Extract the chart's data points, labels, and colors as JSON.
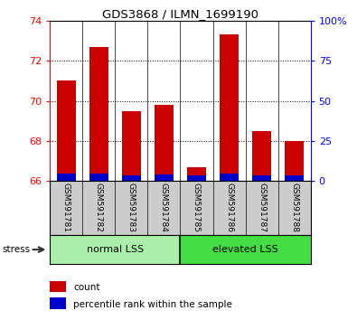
{
  "title": "GDS3868 / ILMN_1699190",
  "samples": [
    "GSM591781",
    "GSM591782",
    "GSM591783",
    "GSM591784",
    "GSM591785",
    "GSM591786",
    "GSM591787",
    "GSM591788"
  ],
  "red_values": [
    71.0,
    72.7,
    69.5,
    69.8,
    66.7,
    73.3,
    68.5,
    68.0
  ],
  "blue_values": [
    0.35,
    0.35,
    0.25,
    0.3,
    0.25,
    0.35,
    0.25,
    0.28
  ],
  "baseline": 66.0,
  "ylim_left": [
    66,
    74
  ],
  "yticks_left": [
    66,
    68,
    70,
    72,
    74
  ],
  "ylim_right": [
    0,
    100
  ],
  "yticks_right": [
    0,
    25,
    50,
    75,
    100
  ],
  "right_tick_labels": [
    "0",
    "25",
    "50",
    "75",
    "100%"
  ],
  "groups": [
    {
      "label": "normal LSS",
      "start": 0,
      "end": 4,
      "color": "#aaf0aa"
    },
    {
      "label": "elevated LSS",
      "start": 4,
      "end": 8,
      "color": "#44dd44"
    }
  ],
  "bar_width": 0.6,
  "red_color": "#cc0000",
  "blue_color": "#0000cc",
  "bg_color": "#ffffff",
  "tick_area_bg": "#cccccc",
  "stress_label": "stress",
  "legend_items": [
    {
      "color": "#cc0000",
      "label": "count"
    },
    {
      "color": "#0000cc",
      "label": "percentile rank within the sample"
    }
  ]
}
